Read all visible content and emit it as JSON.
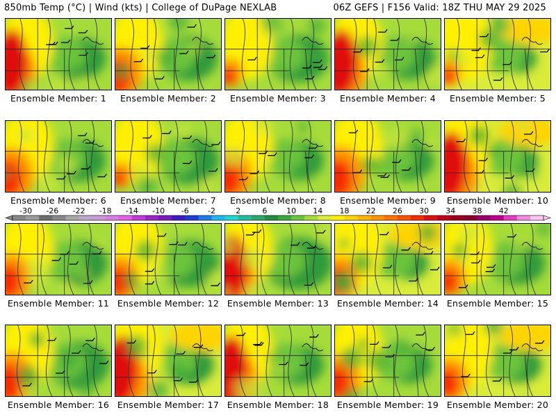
{
  "header": {
    "left": "850mb Temp (°C) | Wind (kts) | College of DuPage NEXLAB",
    "right": "06Z GEFS | F156 Valid: 18Z THU MAY 29 2025"
  },
  "members": [
    {
      "label": "Ensemble Member: 1",
      "warmth": 0.55,
      "hot_west": 0.9,
      "cool_east": 0.6
    },
    {
      "label": "Ensemble Member: 2",
      "warmth": 0.5,
      "hot_west": 0.75,
      "cool_east": 0.65
    },
    {
      "label": "Ensemble Member: 3",
      "warmth": 0.45,
      "hot_west": 0.35,
      "cool_east": 0.7
    },
    {
      "label": "Ensemble Member: 4",
      "warmth": 0.55,
      "hot_west": 0.9,
      "cool_east": 0.6
    },
    {
      "label": "Ensemble Member: 5",
      "warmth": 0.65,
      "hot_west": 0.3,
      "cool_east": 0.35
    },
    {
      "label": "Ensemble Member: 6",
      "warmth": 0.55,
      "hot_west": 0.8,
      "cool_east": 0.6
    },
    {
      "label": "Ensemble Member: 7",
      "warmth": 0.4,
      "hot_west": 0.3,
      "cool_east": 0.7
    },
    {
      "label": "Ensemble Member: 8",
      "warmth": 0.55,
      "hot_west": 0.75,
      "cool_east": 0.55
    },
    {
      "label": "Ensemble Member: 9",
      "warmth": 0.6,
      "hot_west": 0.85,
      "cool_east": 0.55
    },
    {
      "label": "Ensemble Member: 10",
      "warmth": 0.85,
      "hot_west": 1.0,
      "cool_east": 0.4
    },
    {
      "label": "Ensemble Member: 11",
      "warmth": 0.5,
      "hot_west": 0.7,
      "cool_east": 0.65
    },
    {
      "label": "Ensemble Member: 12",
      "warmth": 0.45,
      "hot_west": 0.6,
      "cool_east": 0.7
    },
    {
      "label": "Ensemble Member: 13",
      "warmth": 0.5,
      "hot_west": 0.9,
      "cool_east": 0.8
    },
    {
      "label": "Ensemble Member: 14",
      "warmth": 0.65,
      "hot_west": 0.6,
      "cool_east": 0.4
    },
    {
      "label": "Ensemble Member: 15",
      "warmth": 0.55,
      "hot_west": 0.5,
      "cool_east": 0.6
    },
    {
      "label": "Ensemble Member: 16",
      "warmth": 0.5,
      "hot_west": 0.8,
      "cool_east": 0.7
    },
    {
      "label": "Ensemble Member: 17",
      "warmth": 0.65,
      "hot_west": 1.0,
      "cool_east": 0.55
    },
    {
      "label": "Ensemble Member: 18",
      "warmth": 0.6,
      "hot_west": 0.95,
      "cool_east": 0.55
    },
    {
      "label": "Ensemble Member: 19",
      "warmth": 0.6,
      "hot_west": 0.7,
      "cool_east": 0.5
    },
    {
      "label": "Ensemble Member: 20",
      "warmth": 0.7,
      "hot_west": 0.6,
      "cool_east": 0.5
    }
  ],
  "colorbar": {
    "tick_labels": [
      "-30",
      "-26",
      "-22",
      "-18",
      "-14",
      "-10",
      "-6",
      "-2",
      "2",
      "6",
      "10",
      "14",
      "18",
      "22",
      "26",
      "30",
      "34",
      "38",
      "42"
    ],
    "colors": [
      "#888888",
      "#9c9c9c",
      "#6e6e6e",
      "#8a8a8a",
      "#a8a8a8",
      "#b9a9c8",
      "#c99ad8",
      "#d77ee0",
      "#e25fe6",
      "#c13cd6",
      "#9e23c9",
      "#7a1cc0",
      "#3d1cc0",
      "#1f3ed8",
      "#1f7ae8",
      "#1fb7f0",
      "#1fd8d0",
      "#1fc09a",
      "#2ba86a",
      "#238f3e",
      "#3aa83a",
      "#6cc43a",
      "#a6dc3a",
      "#d9ec3a",
      "#fff000",
      "#ffd400",
      "#ffb400",
      "#ff9400",
      "#ff7400",
      "#ff5200",
      "#f52c00",
      "#e00f0f",
      "#c00018",
      "#a0001c",
      "#8c0030",
      "#9c006c",
      "#c0008c",
      "#e040c0",
      "#f08ae0",
      "#fbc6f0"
    ]
  }
}
